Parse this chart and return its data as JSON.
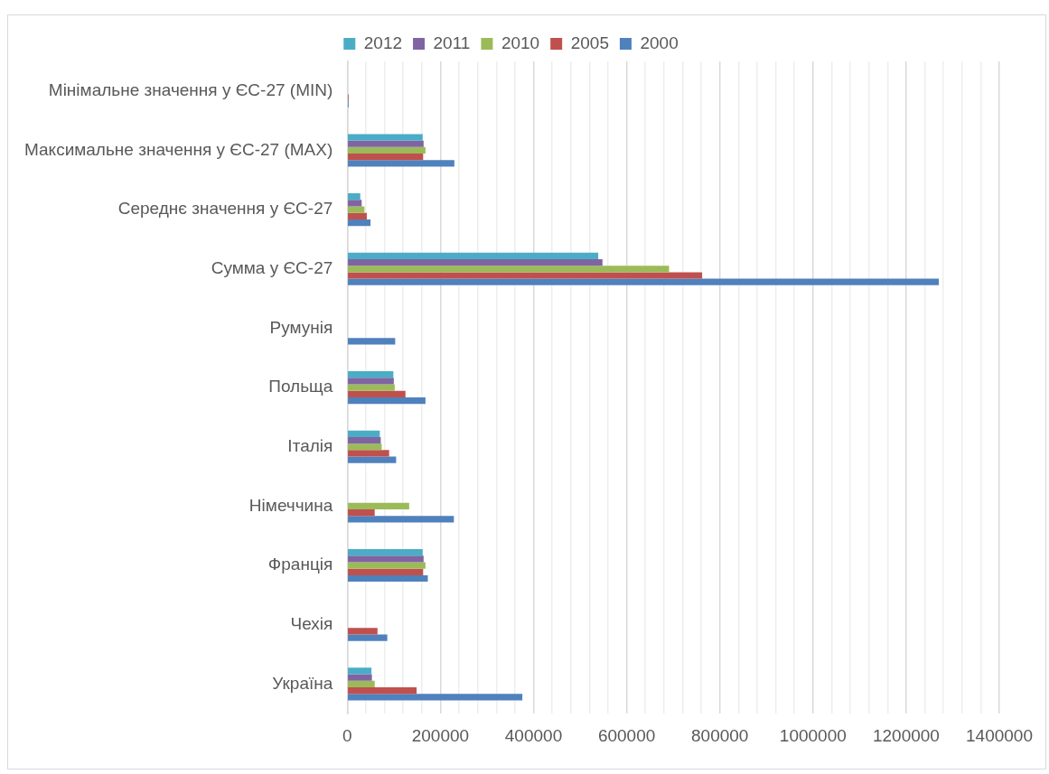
{
  "chart_data": {
    "type": "bar",
    "orientation": "horizontal",
    "legend": "top",
    "grid": "x",
    "categories": [
      "Мінімальне значення у ЄС-27 (MIN)",
      "Максимальне значення у ЄС-27 (MAX)",
      "Середнє значення у ЄС-27",
      "Сумма у ЄС-27",
      "Румунія",
      "Польща",
      "Італія",
      "Німеччина",
      "Франція",
      "Чехія",
      "Україна"
    ],
    "series": [
      {
        "name": "2012",
        "color": "#4bacc6",
        "values": [
          null,
          162000,
          28000,
          539000,
          null,
          99000,
          70000,
          null,
          162000,
          null,
          52000
        ]
      },
      {
        "name": "2011",
        "color": "#8064a2",
        "values": [
          null,
          164000,
          31000,
          548000,
          null,
          100000,
          72000,
          null,
          164000,
          null,
          53000
        ]
      },
      {
        "name": "2010",
        "color": "#9bbb59",
        "values": [
          null,
          168000,
          37000,
          691000,
          null,
          102000,
          74000,
          133000,
          168000,
          null,
          59000
        ]
      },
      {
        "name": "2005",
        "color": "#c0504d",
        "values": [
          3000,
          163000,
          42000,
          762000,
          null,
          125000,
          90000,
          59000,
          163000,
          65000,
          149000
        ]
      },
      {
        "name": "2000",
        "color": "#4f81bd",
        "values": [
          3000,
          230000,
          50000,
          1270000,
          103000,
          168000,
          105000,
          229000,
          173000,
          86000,
          376000
        ]
      }
    ],
    "xlim": [
      0,
      1400000
    ],
    "xticks": [
      0,
      {
        "value": 40000,
        "label": null
      },
      {
        "value": 80000,
        "label": null
      },
      {
        "value": 120000,
        "label": null
      },
      {
        "value": 160000,
        "label": null
      },
      200000,
      {
        "value": 240000,
        "label": null
      },
      {
        "value": 280000,
        "label": null
      },
      {
        "value": 320000,
        "label": null
      },
      {
        "value": 360000,
        "label": null
      },
      400000,
      {
        "value": 440000,
        "label": null
      },
      {
        "value": 480000,
        "label": null
      },
      {
        "value": 520000,
        "label": null
      },
      {
        "value": 560000,
        "label": null
      },
      600000,
      {
        "value": 640000,
        "label": null
      },
      {
        "value": 680000,
        "label": null
      },
      {
        "value": 720000,
        "label": null
      },
      {
        "value": 760000,
        "label": null
      },
      800000,
      {
        "value": 840000,
        "label": null
      },
      {
        "value": 880000,
        "label": null
      },
      {
        "value": 920000,
        "label": null
      },
      {
        "value": 960000,
        "label": null
      },
      1000000,
      {
        "value": 1040000,
        "label": null
      },
      {
        "value": 1080000,
        "label": null
      },
      {
        "value": 1120000,
        "label": null
      },
      {
        "value": 1160000,
        "label": null
      },
      1200000,
      {
        "value": 1240000,
        "label": null
      },
      {
        "value": 1280000,
        "label": null
      },
      {
        "value": 1320000,
        "label": null
      },
      {
        "value": 1360000,
        "label": null
      },
      1400000
    ]
  }
}
